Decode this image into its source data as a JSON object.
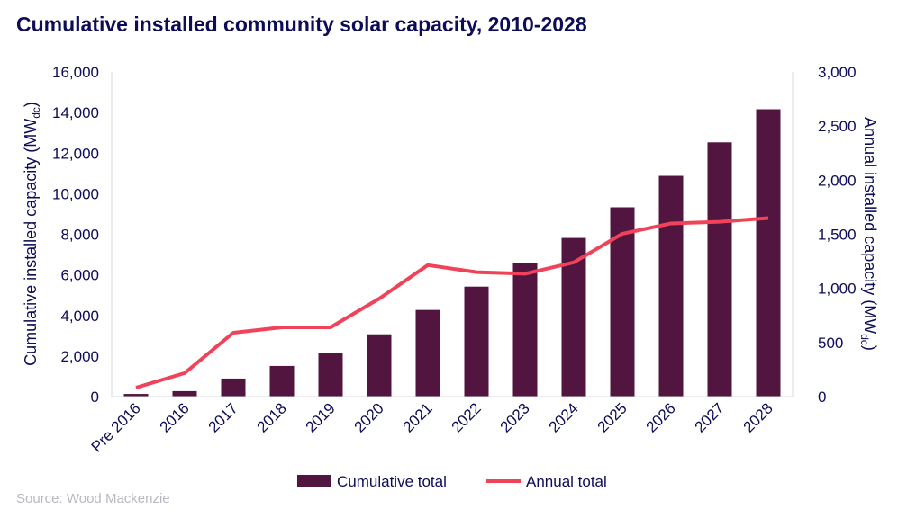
{
  "title": "Cumulative installed community solar capacity, 2010-2028",
  "source": "Source: Wood Mackenzie",
  "colors": {
    "bars": "#52153f",
    "line": "#f0435a",
    "text": "#0d0c57"
  },
  "chart_data": {
    "type": "bar+line",
    "title": "Cumulative installed community solar capacity, 2010-2028",
    "categories": [
      "Pre 2016",
      "2016",
      "2017",
      "2018",
      "2019",
      "2020",
      "2021",
      "2022",
      "2023",
      "2024",
      "2025",
      "2026",
      "2027",
      "2028"
    ],
    "ylabel": "Cumulative installed capacity (MWdc)",
    "ylabel_main": "Cumulative installed capacity (MW",
    "ylabel_sub": "dc",
    "ylabel_end": ")",
    "y2label_main": "Annual installed capacity (MW",
    "y2label_sub": "dc",
    "y2label_end": ")",
    "ylim": [
      0,
      16000
    ],
    "y2lim": [
      0,
      3000
    ],
    "yticks": [
      "0",
      "2,000",
      "4,000",
      "6,000",
      "8,000",
      "10,000",
      "12,000",
      "14,000",
      "16,000"
    ],
    "y2ticks": [
      "0",
      "500",
      "1,000",
      "1,500",
      "2,000",
      "2,500",
      "3,000"
    ],
    "grid": false,
    "legend_position": "bottom",
    "series": [
      {
        "name": "Cumulative total",
        "type": "bar",
        "axis": "left",
        "values": [
          130,
          270,
          890,
          1510,
          2130,
          3070,
          4270,
          5420,
          6560,
          7820,
          9330,
          10880,
          12530,
          14160
        ]
      },
      {
        "name": "Annual total",
        "type": "line",
        "axis": "right",
        "values": [
          83,
          217,
          590,
          640,
          640,
          905,
          1215,
          1150,
          1135,
          1240,
          1505,
          1600,
          1615,
          1650
        ]
      }
    ]
  }
}
